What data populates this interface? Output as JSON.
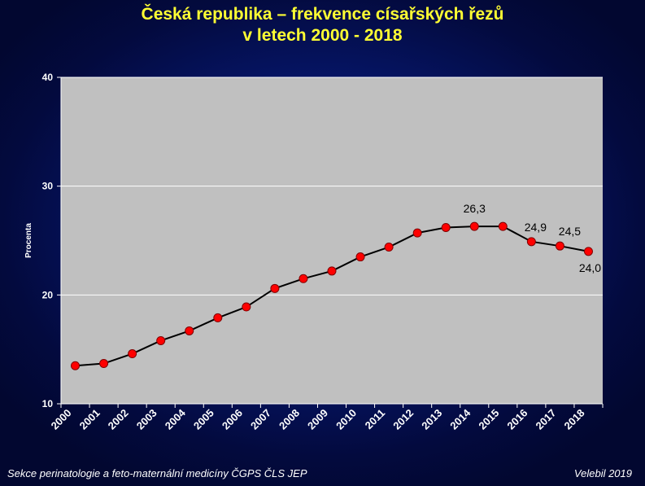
{
  "title_line1": "Česká republika – frekvence císařských řezů",
  "title_line2": "v letech 2000 - 2018",
  "footer_left": "Sekce perinatologie a feto-maternální medicíny ČGPS ČLS JEP",
  "footer_right": "Velebil 2019",
  "colors": {
    "title": "#ffff33",
    "plot_background": "#c0c0c0",
    "line": "#000000",
    "marker_fill": "#ff0000",
    "marker_stroke": "#800000"
  },
  "chart_data": {
    "type": "line",
    "title": "Česká republika – frekvence císařských řezů v letech 2000 - 2018",
    "xlabel": "",
    "ylabel": "Procenta",
    "ylim": [
      10,
      40
    ],
    "yticks": [
      10,
      20,
      30,
      40
    ],
    "grid": true,
    "x": [
      "2000",
      "2001",
      "2002",
      "2003",
      "2004",
      "2005",
      "2006",
      "2007",
      "2008",
      "2009",
      "2010",
      "2011",
      "2012",
      "2013",
      "2014",
      "2015",
      "2016",
      "2017",
      "2018"
    ],
    "series": [
      {
        "values": [
          13.5,
          13.7,
          14.6,
          15.8,
          16.7,
          17.9,
          18.9,
          20.6,
          21.5,
          22.2,
          23.5,
          24.4,
          25.7,
          26.2,
          26.3,
          26.3,
          24.9,
          24.5,
          24.0
        ]
      }
    ],
    "data_labels": [
      {
        "x": "2014",
        "text": "26,3"
      },
      {
        "x": "2016",
        "text": "24,9"
      },
      {
        "x": "2017",
        "text": "24,5"
      },
      {
        "x": "2018",
        "text": "24,0"
      }
    ]
  }
}
